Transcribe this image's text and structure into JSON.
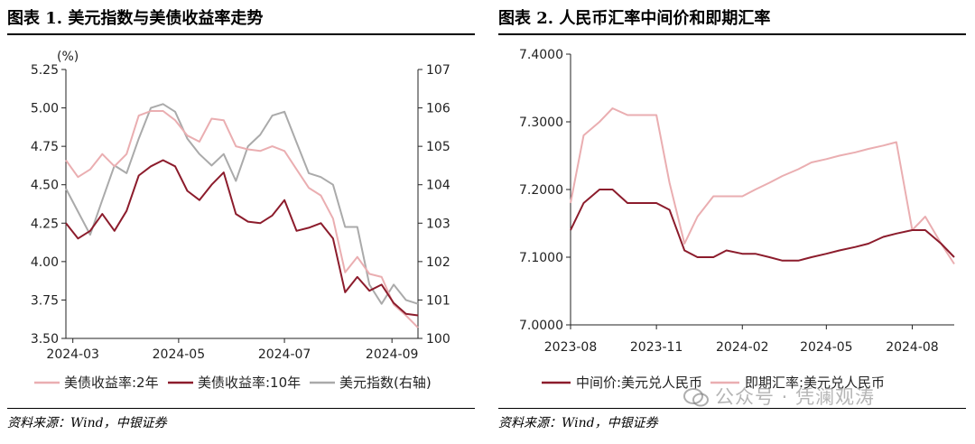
{
  "colors": {
    "light_pink": "#eaaeb1",
    "dark_red": "#8c1c2c",
    "gray": "#aaaaaa",
    "axis": "#222222"
  },
  "chart_data": [
    {
      "type": "line",
      "title": "图表 1. 美元指数与美债收益率走势",
      "axis_unit_label": "(%)",
      "source": "资料来源：Wind，中银证券",
      "x_ticks": [
        "2024-03",
        "2024-05",
        "2024-07",
        "2024-09"
      ],
      "x": [
        "2024-02-26",
        "2024-03-04",
        "2024-03-11",
        "2024-03-18",
        "2024-03-25",
        "2024-04-01",
        "2024-04-08",
        "2024-04-15",
        "2024-04-22",
        "2024-04-29",
        "2024-05-06",
        "2024-05-13",
        "2024-05-20",
        "2024-05-27",
        "2024-06-03",
        "2024-06-10",
        "2024-06-17",
        "2024-06-24",
        "2024-07-01",
        "2024-07-08",
        "2024-07-15",
        "2024-07-22",
        "2024-07-29",
        "2024-08-05",
        "2024-08-12",
        "2024-08-19",
        "2024-08-26",
        "2024-09-02",
        "2024-09-09",
        "2024-09-16"
      ],
      "y_left": {
        "min": 3.5,
        "max": 5.25,
        "ticks": [
          3.5,
          3.75,
          4.0,
          4.25,
          4.5,
          4.75,
          5.0,
          5.25
        ]
      },
      "y_right": {
        "min": 100,
        "max": 107,
        "ticks": [
          100,
          101,
          102,
          103,
          104,
          105,
          106,
          107
        ]
      },
      "series": [
        {
          "name": "美债收益率:2年",
          "axis": "left",
          "color_key": "light_pink",
          "values": [
            4.66,
            4.55,
            4.6,
            4.7,
            4.62,
            4.7,
            4.95,
            4.98,
            4.98,
            4.92,
            4.82,
            4.78,
            4.93,
            4.92,
            4.75,
            4.73,
            4.72,
            4.75,
            4.72,
            4.6,
            4.48,
            4.43,
            4.28,
            3.93,
            4.03,
            3.92,
            3.9,
            3.72,
            3.65,
            3.57
          ]
        },
        {
          "name": "美债收益率:10年",
          "axis": "left",
          "color_key": "dark_red",
          "values": [
            4.25,
            4.15,
            4.2,
            4.31,
            4.2,
            4.33,
            4.56,
            4.62,
            4.66,
            4.62,
            4.46,
            4.4,
            4.5,
            4.58,
            4.31,
            4.26,
            4.25,
            4.3,
            4.4,
            4.2,
            4.22,
            4.25,
            4.15,
            3.8,
            3.9,
            3.81,
            3.85,
            3.73,
            3.66,
            3.65
          ]
        },
        {
          "name": "美元指数(右轴)",
          "axis": "right",
          "color_key": "gray",
          "values": [
            103.9,
            103.3,
            102.7,
            103.6,
            104.5,
            104.3,
            105.2,
            106.0,
            106.1,
            105.9,
            105.2,
            104.8,
            104.5,
            104.8,
            104.1,
            105.0,
            105.3,
            105.8,
            105.9,
            105.1,
            104.3,
            104.2,
            104.0,
            102.9,
            102.9,
            101.4,
            100.9,
            101.4,
            101.0,
            100.9
          ]
        }
      ]
    },
    {
      "type": "line",
      "title": "图表 2. 人民币汇率中间价和即期汇率",
      "source": "资料来源：Wind，中银证券",
      "x_ticks": [
        "2023-08",
        "2023-11",
        "2024-02",
        "2024-05",
        "2024-08"
      ],
      "x": [
        "2023-08-01",
        "2023-08-15",
        "2023-09-01",
        "2023-09-15",
        "2023-10-01",
        "2023-10-15",
        "2023-11-01",
        "2023-11-15",
        "2023-12-01",
        "2023-12-15",
        "2024-01-01",
        "2024-01-15",
        "2024-02-01",
        "2024-02-15",
        "2024-03-01",
        "2024-03-15",
        "2024-04-01",
        "2024-04-15",
        "2024-05-01",
        "2024-05-15",
        "2024-06-01",
        "2024-06-15",
        "2024-07-01",
        "2024-07-15",
        "2024-08-01",
        "2024-08-15",
        "2024-09-01",
        "2024-09-15"
      ],
      "y": {
        "min": 7.0,
        "max": 7.4,
        "ticks": [
          7.0,
          7.1,
          7.2,
          7.3,
          7.4
        ]
      },
      "series": [
        {
          "name": "中间价:美元兑人民币",
          "color_key": "dark_red",
          "values": [
            7.14,
            7.18,
            7.2,
            7.2,
            7.18,
            7.18,
            7.18,
            7.17,
            7.11,
            7.1,
            7.1,
            7.11,
            7.105,
            7.105,
            7.1,
            7.095,
            7.095,
            7.1,
            7.105,
            7.11,
            7.115,
            7.12,
            7.13,
            7.135,
            7.14,
            7.14,
            7.12,
            7.1
          ]
        },
        {
          "name": "即期汇率:美元兑人民币",
          "color_key": "light_pink",
          "values": [
            7.18,
            7.28,
            7.3,
            7.32,
            7.31,
            7.31,
            7.31,
            7.21,
            7.12,
            7.16,
            7.19,
            7.19,
            7.19,
            7.2,
            7.21,
            7.22,
            7.23,
            7.24,
            7.245,
            7.25,
            7.255,
            7.26,
            7.265,
            7.27,
            7.14,
            7.16,
            7.12,
            7.09
          ]
        }
      ]
    }
  ],
  "watermark": {
    "text": "公众号 · 凭澜观涛"
  }
}
